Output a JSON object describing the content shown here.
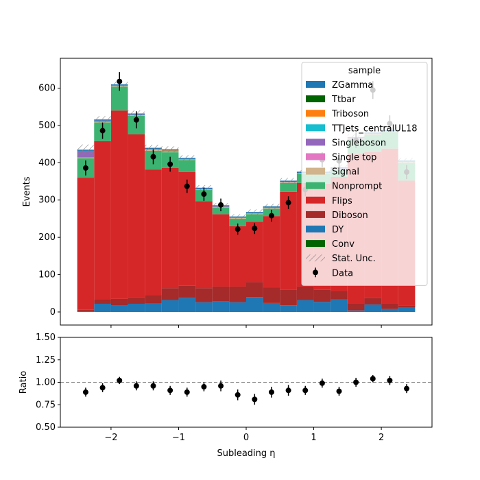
{
  "chart_data": [
    {
      "type": "bar",
      "stacked": true,
      "panel": "main",
      "ylabel": "Events",
      "ylim": [
        -35,
        680
      ],
      "yticks": [
        0,
        100,
        200,
        300,
        400,
        500,
        600
      ],
      "x_edges": [
        -2.5,
        -2.25,
        -2.0,
        -1.75,
        -1.5,
        -1.25,
        -1.0,
        -0.75,
        -0.5,
        -0.25,
        0.0,
        0.25,
        0.5,
        0.75,
        1.0,
        1.25,
        1.5,
        1.75,
        2.0,
        2.25,
        2.5
      ],
      "x_centers": [
        -2.375,
        -2.125,
        -1.875,
        -1.625,
        -1.375,
        -1.125,
        -0.875,
        -0.625,
        -0.375,
        -0.125,
        0.125,
        0.375,
        0.625,
        0.875,
        1.125,
        1.375,
        1.625,
        1.875,
        2.125,
        2.375
      ],
      "series": [
        {
          "name": "DY",
          "color": "#1f77b4",
          "values": [
            2,
            22,
            17,
            22,
            23,
            32,
            38,
            26,
            28,
            26,
            40,
            24,
            18,
            32,
            27,
            34,
            4,
            20,
            8,
            12
          ]
        },
        {
          "name": "Diboson",
          "color": "#a52a2a",
          "values": [
            4,
            12,
            18,
            18,
            22,
            32,
            32,
            38,
            40,
            42,
            40,
            42,
            42,
            36,
            32,
            22,
            18,
            18,
            14,
            6
          ]
        },
        {
          "name": "Flips",
          "color": "#d62728",
          "values": [
            354,
            424,
            505,
            436,
            337,
            322,
            305,
            233,
            194,
            162,
            162,
            191,
            262,
            278,
            285,
            306,
            401,
            391,
            416,
            334
          ]
        },
        {
          "name": "Nonprompt",
          "color": "#3cb371",
          "values": [
            52,
            50,
            64,
            50,
            50,
            42,
            32,
            30,
            18,
            20,
            20,
            20,
            24,
            24,
            26,
            20,
            40,
            46,
            44,
            48
          ]
        },
        {
          "name": "Signal",
          "color": "#d2b48c",
          "values": [
            2,
            2,
            2,
            2,
            2,
            2,
            2,
            2,
            2,
            2,
            2,
            2,
            2,
            2,
            2,
            2,
            2,
            2,
            2,
            2
          ]
        },
        {
          "name": "Singleboson",
          "color": "#9467bd",
          "values": [
            18,
            3,
            1,
            1,
            1,
            1,
            1,
            1,
            1,
            1,
            1,
            1,
            1,
            1,
            1,
            1,
            1,
            1,
            1,
            1
          ]
        },
        {
          "name": "Triboson",
          "color": "#ff7f0e",
          "values": [
            0,
            0,
            0,
            0,
            2,
            2,
            0,
            0,
            0,
            0,
            0,
            0,
            0,
            0,
            0,
            0,
            0,
            0,
            0,
            0
          ]
        },
        {
          "name": "ZGamma",
          "color": "#1f77b4",
          "values": [
            3,
            3,
            3,
            3,
            3,
            3,
            3,
            3,
            3,
            3,
            3,
            3,
            3,
            3,
            3,
            3,
            3,
            3,
            3,
            3
          ]
        }
      ],
      "stat_unc": [
        14,
        9,
        7,
        8,
        8,
        8,
        7,
        7,
        6,
        6,
        7,
        7,
        7,
        7,
        7,
        7,
        7,
        8,
        8,
        7
      ],
      "data": {
        "name": "Data",
        "values": [
          386,
          486,
          618,
          515,
          416,
          396,
          337,
          316,
          287,
          222,
          224,
          258,
          293,
          328,
          408,
          405,
          460,
          595,
          505,
          375
        ],
        "errors": [
          20,
          22,
          25,
          23,
          20,
          20,
          18,
          18,
          17,
          15,
          15,
          16,
          17,
          18,
          20,
          20,
          21,
          24,
          22,
          19
        ]
      },
      "legend": {
        "title": "sample",
        "placement": "top-right",
        "entries": [
          {
            "label": "ZGamma",
            "color": "#1f77b4",
            "kind": "patch"
          },
          {
            "label": "Ttbar",
            "color": "#006400",
            "kind": "patch"
          },
          {
            "label": "Triboson",
            "color": "#ff7f0e",
            "kind": "patch"
          },
          {
            "label": "TTJets_centralUL18",
            "color": "#17becf",
            "kind": "patch"
          },
          {
            "label": "Singleboson",
            "color": "#9467bd",
            "kind": "patch"
          },
          {
            "label": "Single top",
            "color": "#e377c2",
            "kind": "patch"
          },
          {
            "label": "Signal",
            "color": "#d2b48c",
            "kind": "patch"
          },
          {
            "label": "Nonprompt",
            "color": "#3cb371",
            "kind": "patch"
          },
          {
            "label": "Flips",
            "color": "#d62728",
            "kind": "patch"
          },
          {
            "label": "Diboson",
            "color": "#a52a2a",
            "kind": "patch"
          },
          {
            "label": "DY",
            "color": "#1f77b4",
            "kind": "patch"
          },
          {
            "label": "Conv",
            "color": "#006400",
            "kind": "patch"
          },
          {
            "label": "Stat. Unc.",
            "color": "#808080",
            "kind": "hatch"
          },
          {
            "label": "Data",
            "color": "#000000",
            "kind": "errorbar"
          }
        ]
      }
    },
    {
      "type": "scatter",
      "panel": "ratio",
      "xlabel": "Subleading η",
      "ylabel": "Ratio",
      "xlim": [
        -2.75,
        2.75
      ],
      "xticks": [
        -2,
        -1,
        0,
        1,
        2
      ],
      "xtick_labels": [
        "−2",
        "−1",
        "0",
        "1",
        "2"
      ],
      "ylim": [
        0.5,
        1.5
      ],
      "yticks": [
        0.5,
        0.75,
        1.0,
        1.25,
        1.5
      ],
      "ytick_labels": [
        "0.50",
        "0.75",
        "1.00",
        "1.25",
        "1.50"
      ],
      "reference_line": 1.0,
      "x": [
        -2.375,
        -2.125,
        -1.875,
        -1.625,
        -1.375,
        -1.125,
        -0.875,
        -0.625,
        -0.375,
        -0.125,
        0.125,
        0.375,
        0.625,
        0.875,
        1.125,
        1.375,
        1.625,
        1.875,
        2.125,
        2.375
      ],
      "y": [
        0.89,
        0.94,
        1.02,
        0.96,
        0.96,
        0.91,
        0.89,
        0.95,
        0.96,
        0.86,
        0.81,
        0.89,
        0.91,
        0.91,
        0.99,
        0.9,
        1.0,
        1.04,
        1.02,
        0.93
      ],
      "errors": [
        0.05,
        0.05,
        0.04,
        0.05,
        0.05,
        0.05,
        0.05,
        0.05,
        0.06,
        0.06,
        0.06,
        0.06,
        0.06,
        0.05,
        0.05,
        0.05,
        0.05,
        0.04,
        0.05,
        0.05
      ]
    }
  ]
}
